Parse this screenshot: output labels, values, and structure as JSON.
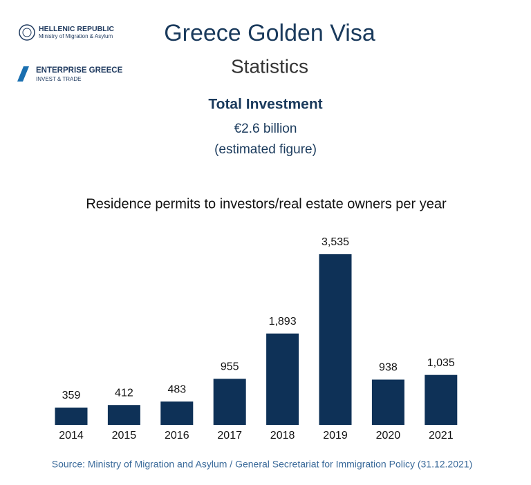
{
  "header": {
    "org1_title": "HELLENIC REPUBLIC",
    "org1_subtitle": "Ministry of Migration & Asylum",
    "org2_title": "ENTERPRISE GREECE",
    "org2_subtitle": "INVEST & TRADE",
    "title": "Greece Golden Visa",
    "subtitle": "Statistics",
    "investment_heading": "Total Investment",
    "investment_value": "€2.6 billion",
    "investment_note": "(estimated figure)"
  },
  "chart_data": {
    "type": "bar",
    "title": "Residence permits to investors/real estate owners per year",
    "categories": [
      "2014",
      "2015",
      "2016",
      "2017",
      "2018",
      "2019",
      "2020",
      "2021"
    ],
    "values": [
      359,
      412,
      483,
      955,
      1893,
      3535,
      938,
      1035
    ],
    "value_labels": [
      "359",
      "412",
      "483",
      "955",
      "1,893",
      "3,535",
      "938",
      "1,035"
    ],
    "color": "#0e3157"
  },
  "footer": {
    "source": "Source: Ministry of Migration and Asylum / General Secretariat for Immigration Policy (31.12.2021)"
  }
}
